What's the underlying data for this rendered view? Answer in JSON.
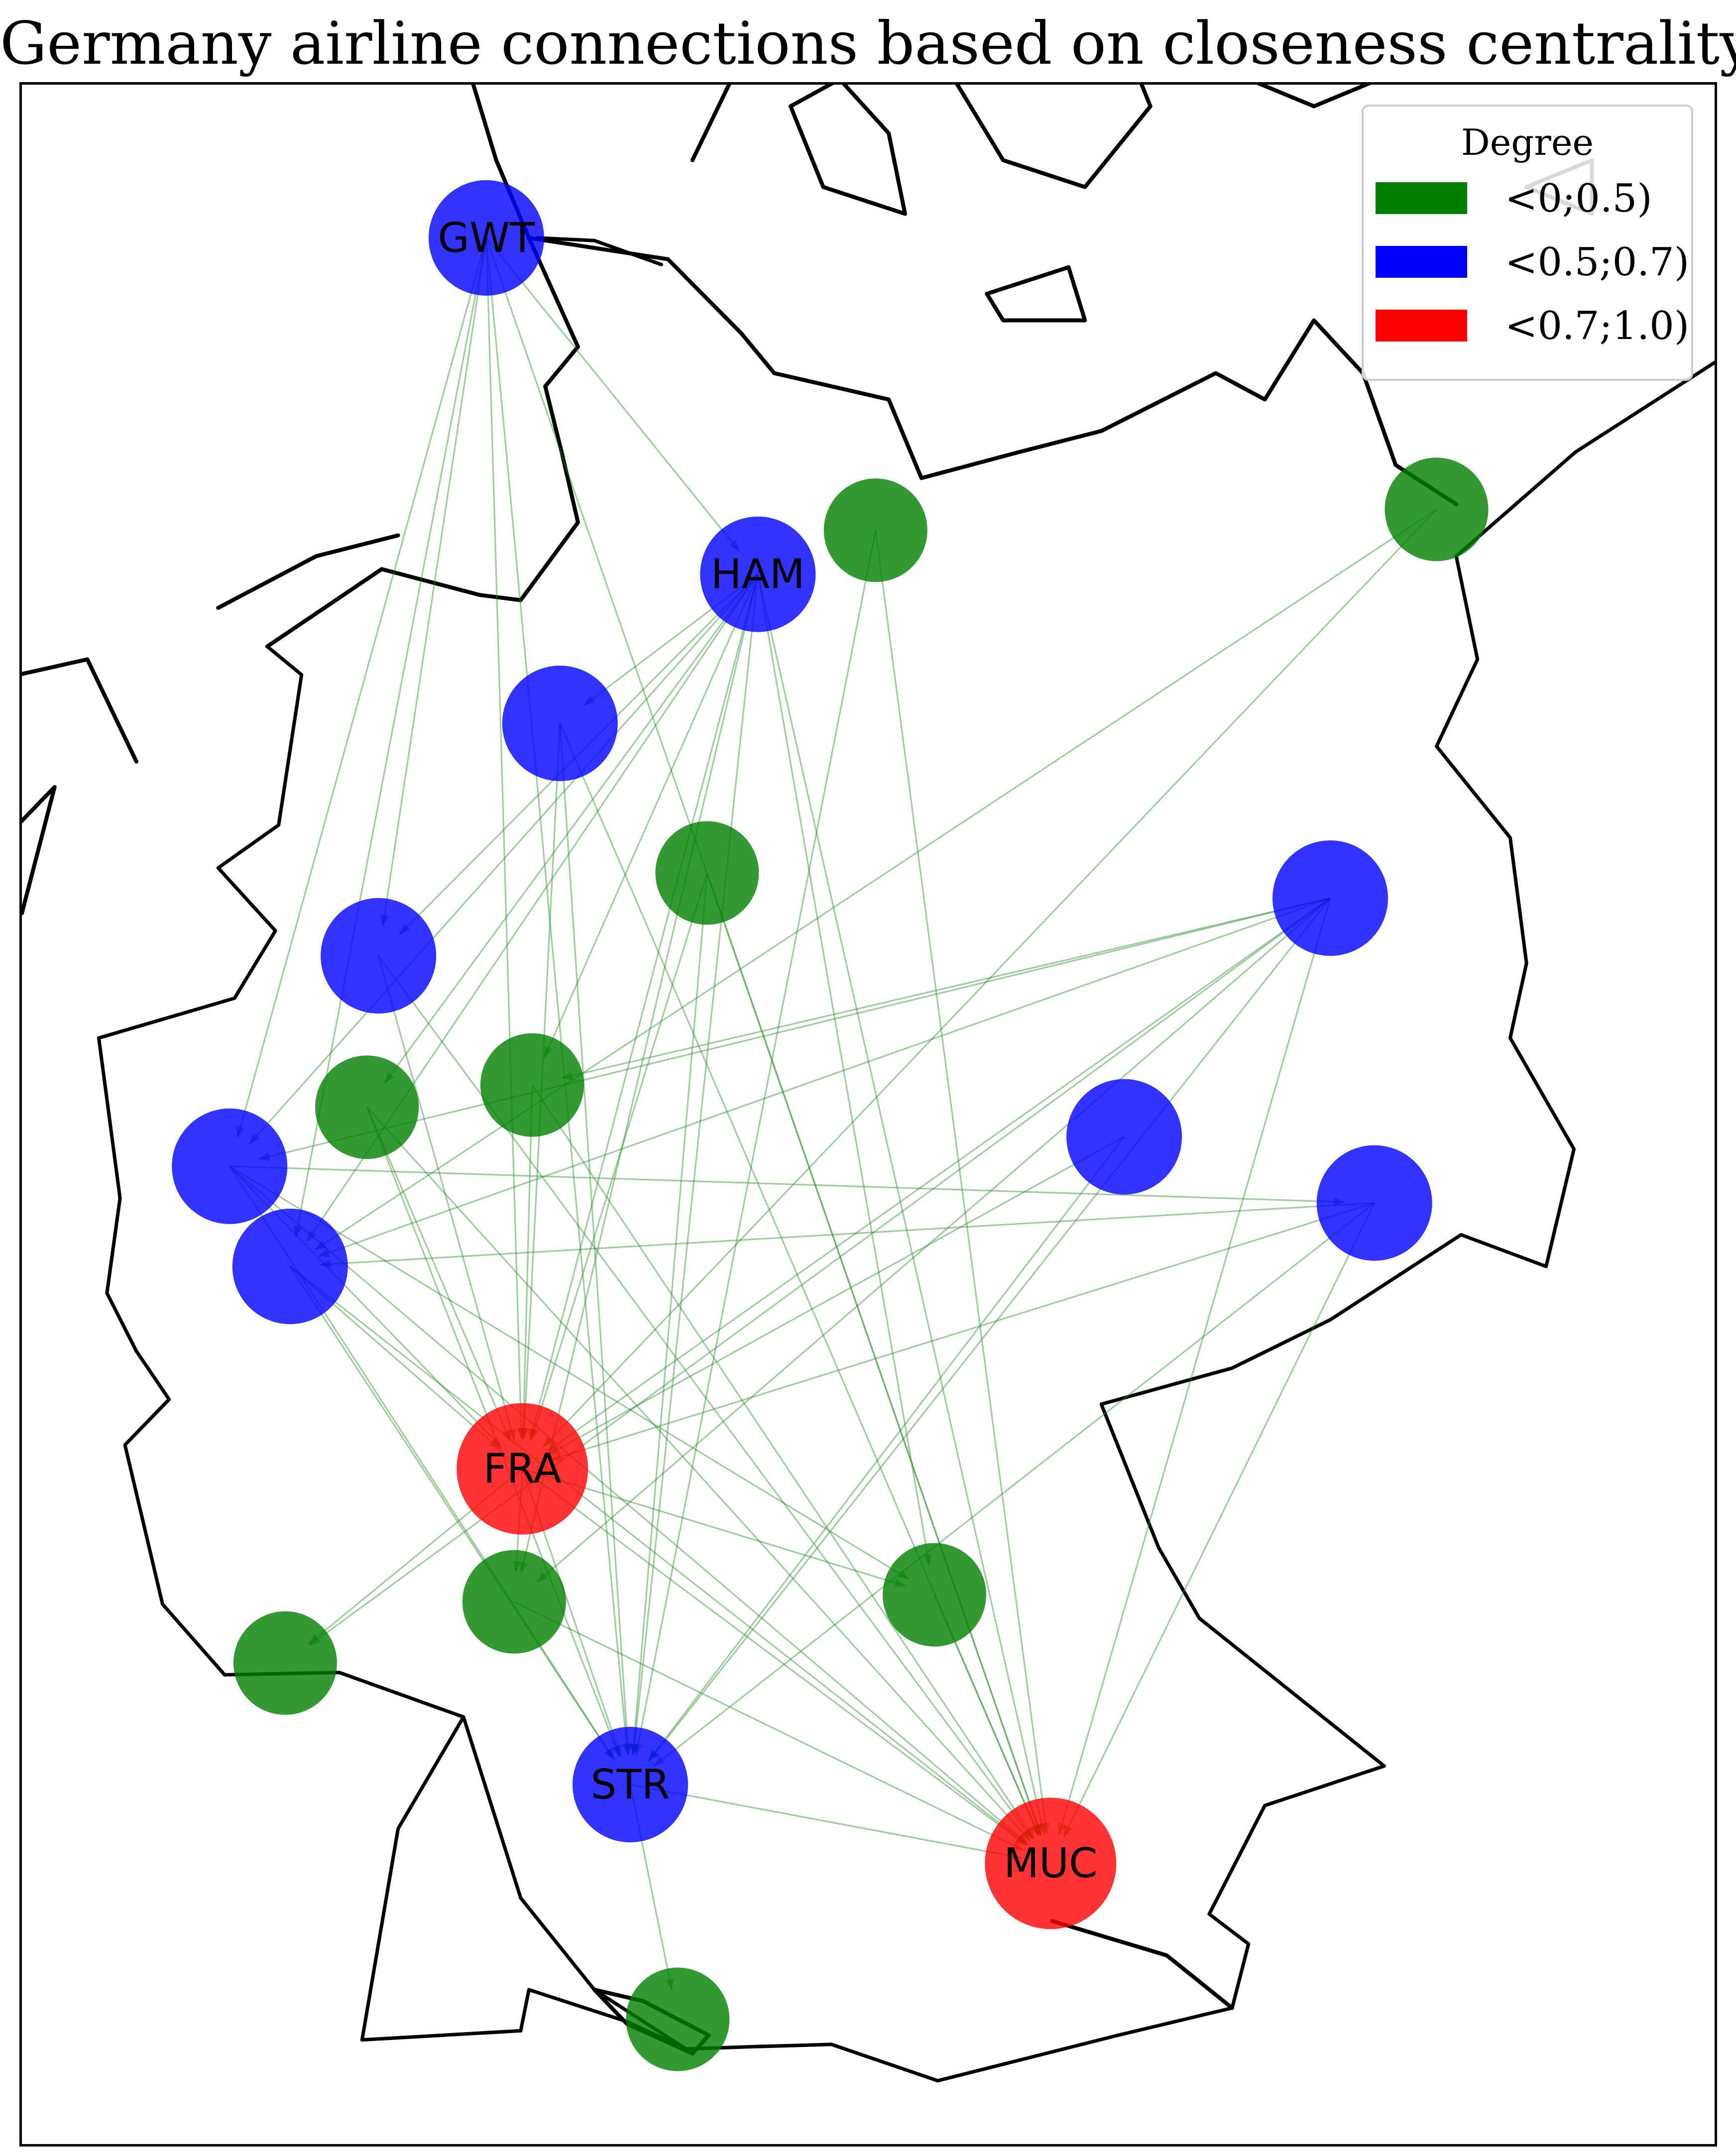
{
  "title": "Germany airline connections based on closeness centrality",
  "legend": {
    "title": "Degree",
    "entries": [
      {
        "label": "<0;0.5)",
        "color": "#008000"
      },
      {
        "label": "<0.5;0.7)",
        "color": "#0000ff"
      },
      {
        "label": "<0.7;1.0)",
        "color": "#ff0000"
      }
    ]
  },
  "colors": {
    "green": "#008000",
    "blue": "#0000ff",
    "red": "#ff0000",
    "edge": "#2e8b2e",
    "coast": "#000000"
  },
  "airports": [
    {
      "id": "GWT",
      "label": "GWT",
      "lat": 54.91,
      "lon": 8.34,
      "class": "blue"
    },
    {
      "id": "HAM",
      "label": "HAM",
      "lat": 53.63,
      "lon": 10.0,
      "class": "blue"
    },
    {
      "id": "LBC",
      "label": "",
      "lat": 53.8,
      "lon": 10.72,
      "class": "green"
    },
    {
      "id": "HDF",
      "label": "",
      "lat": 53.88,
      "lon": 14.15,
      "class": "green"
    },
    {
      "id": "BRE",
      "label": "",
      "lat": 53.05,
      "lon": 8.79,
      "class": "blue"
    },
    {
      "id": "HAJ",
      "label": "",
      "lat": 52.46,
      "lon": 9.69,
      "class": "green"
    },
    {
      "id": "BER",
      "label": "",
      "lat": 52.36,
      "lon": 13.5,
      "class": "blue"
    },
    {
      "id": "FMO",
      "label": "",
      "lat": 52.13,
      "lon": 7.68,
      "class": "blue"
    },
    {
      "id": "PAD",
      "label": "",
      "lat": 51.61,
      "lon": 8.62,
      "class": "green"
    },
    {
      "id": "DTM",
      "label": "",
      "lat": 51.52,
      "lon": 7.61,
      "class": "green"
    },
    {
      "id": "ERF",
      "label": "",
      "lat": 51.4,
      "lon": 12.24,
      "class": "blue"
    },
    {
      "id": "DUS",
      "label": "",
      "lat": 51.28,
      "lon": 6.77,
      "class": "blue"
    },
    {
      "id": "DRS",
      "label": "",
      "lat": 51.13,
      "lon": 13.77,
      "class": "blue"
    },
    {
      "id": "CGN",
      "label": "",
      "lat": 50.87,
      "lon": 7.14,
      "class": "blue"
    },
    {
      "id": "FRA",
      "label": "FRA",
      "lat": 50.03,
      "lon": 8.56,
      "class": "red"
    },
    {
      "id": "NUE",
      "label": "",
      "lat": 49.5,
      "lon": 11.08,
      "class": "green"
    },
    {
      "id": "HHN",
      "label": "",
      "lat": 49.47,
      "lon": 8.51,
      "class": "green"
    },
    {
      "id": "SCN",
      "label": "",
      "lat": 49.21,
      "lon": 7.11,
      "class": "green"
    },
    {
      "id": "STR",
      "label": "STR",
      "lat": 48.69,
      "lon": 9.22,
      "class": "blue"
    },
    {
      "id": "MUC",
      "label": "MUC",
      "lat": 48.35,
      "lon": 11.79,
      "class": "red"
    },
    {
      "id": "FDH",
      "label": "",
      "lat": 47.67,
      "lon": 9.51,
      "class": "green"
    }
  ],
  "routes": [
    [
      "GWT",
      "DUS"
    ],
    [
      "GWT",
      "FMO"
    ],
    [
      "GWT",
      "HAM"
    ],
    [
      "GWT",
      "FRA"
    ],
    [
      "GWT",
      "CGN"
    ],
    [
      "GWT",
      "STR"
    ],
    [
      "GWT",
      "MUC"
    ],
    [
      "HAM",
      "BRE"
    ],
    [
      "HAM",
      "FMO"
    ],
    [
      "HAM",
      "DUS"
    ],
    [
      "HAM",
      "CGN"
    ],
    [
      "HAM",
      "FRA"
    ],
    [
      "HAM",
      "STR"
    ],
    [
      "HAM",
      "MUC"
    ],
    [
      "HAM",
      "HHN"
    ],
    [
      "HAM",
      "NUE"
    ],
    [
      "HAM",
      "DTM"
    ],
    [
      "HAM",
      "PAD"
    ],
    [
      "LBC",
      "MUC"
    ],
    [
      "LBC",
      "STR"
    ],
    [
      "HDF",
      "FRA"
    ],
    [
      "HDF",
      "CGN"
    ],
    [
      "BRE",
      "FRA"
    ],
    [
      "BRE",
      "MUC"
    ],
    [
      "BRE",
      "STR"
    ],
    [
      "HAJ",
      "FRA"
    ],
    [
      "HAJ",
      "MUC"
    ],
    [
      "HAJ",
      "STR"
    ],
    [
      "BER",
      "FRA"
    ],
    [
      "BER",
      "DUS"
    ],
    [
      "BER",
      "CGN"
    ],
    [
      "BER",
      "STR"
    ],
    [
      "BER",
      "HHN"
    ],
    [
      "BER",
      "MUC"
    ],
    [
      "BER",
      "PAD"
    ],
    [
      "BER",
      "SCN"
    ],
    [
      "FMO",
      "FRA"
    ],
    [
      "FMO",
      "MUC"
    ],
    [
      "PAD",
      "MUC"
    ],
    [
      "PAD",
      "FRA"
    ],
    [
      "DTM",
      "FRA"
    ],
    [
      "DTM",
      "MUC"
    ],
    [
      "DTM",
      "STR"
    ],
    [
      "ERF",
      "FRA"
    ],
    [
      "ERF",
      "STR"
    ],
    [
      "DUS",
      "DRS"
    ],
    [
      "DUS",
      "FRA"
    ],
    [
      "DUS",
      "MUC"
    ],
    [
      "DUS",
      "STR"
    ],
    [
      "DUS",
      "NUE"
    ],
    [
      "DRS",
      "FRA"
    ],
    [
      "DRS",
      "CGN"
    ],
    [
      "DRS",
      "STR"
    ],
    [
      "DRS",
      "MUC"
    ],
    [
      "CGN",
      "FRA"
    ],
    [
      "CGN",
      "MUC"
    ],
    [
      "CGN",
      "STR"
    ],
    [
      "FRA",
      "NUE"
    ],
    [
      "FRA",
      "STR"
    ],
    [
      "FRA",
      "MUC"
    ],
    [
      "FRA",
      "SCN"
    ],
    [
      "FRA",
      "HHN"
    ],
    [
      "STR",
      "MUC"
    ],
    [
      "STR",
      "FDH"
    ],
    [
      "NUE",
      "MUC"
    ],
    [
      "HHN",
      "MUC"
    ]
  ],
  "basemap": {
    "country_borders": [
      [
        [
          6.02,
          50.76
        ],
        [
          6.1,
          51.15
        ],
        [
          5.97,
          51.8
        ],
        [
          6.8,
          51.96
        ],
        [
          7.05,
          52.23
        ],
        [
          6.7,
          52.48
        ],
        [
          7.07,
          52.65
        ],
        [
          7.21,
          53.24
        ],
        [
          7.0,
          53.35
        ]
      ],
      [
        [
          6.02,
          50.76
        ],
        [
          6.2,
          50.52
        ],
        [
          6.4,
          50.32
        ],
        [
          6.13,
          50.13
        ],
        [
          6.36,
          49.46
        ],
        [
          6.74,
          49.16
        ],
        [
          7.44,
          49.17
        ],
        [
          8.2,
          48.98
        ],
        [
          7.8,
          48.5
        ],
        [
          7.58,
          47.58
        ]
      ],
      [
        [
          7.58,
          47.58
        ],
        [
          8.55,
          47.62
        ],
        [
          8.6,
          47.8
        ],
        [
          9.2,
          47.66
        ],
        [
          9.56,
          47.54
        ]
      ],
      [
        [
          9.56,
          47.54
        ],
        [
          9.97,
          47.55
        ],
        [
          10.45,
          47.56
        ],
        [
          11.1,
          47.4
        ],
        [
          12.2,
          47.6
        ],
        [
          12.9,
          47.72
        ],
        [
          13.0,
          48.0
        ],
        [
          12.76,
          48.13
        ],
        [
          13.1,
          48.6
        ],
        [
          13.83,
          48.77
        ]
      ],
      [
        [
          13.83,
          48.77
        ],
        [
          12.7,
          49.4
        ],
        [
          12.45,
          49.7
        ],
        [
          12.1,
          50.3
        ],
        [
          12.9,
          50.45
        ],
        [
          13.5,
          50.65
        ],
        [
          14.3,
          51.0
        ],
        [
          14.82,
          50.87
        ]
      ],
      [
        [
          14.82,
          50.87
        ],
        [
          14.99,
          51.35
        ],
        [
          14.6,
          51.8
        ],
        [
          14.7,
          52.1
        ],
        [
          14.6,
          52.6
        ],
        [
          14.15,
          52.96
        ],
        [
          14.4,
          53.3
        ],
        [
          14.27,
          53.7
        ]
      ],
      [
        [
          14.27,
          53.7
        ],
        [
          15.0,
          54.1
        ],
        [
          16.0,
          54.5
        ]
      ],
      [
        [
          9.41,
          54.81
        ],
        [
          9.0,
          54.9
        ],
        [
          8.65,
          54.91
        ]
      ],
      [
        [
          8.2,
          48.98
        ],
        [
          8.55,
          48.2
        ],
        [
          9.0,
          47.8
        ],
        [
          9.56,
          47.54
        ]
      ]
    ],
    "coastlines": [
      [
        [
          7.0,
          53.35
        ],
        [
          7.7,
          53.65
        ],
        [
          8.3,
          53.55
        ],
        [
          8.55,
          53.53
        ],
        [
          8.9,
          53.83
        ],
        [
          8.8,
          54.1
        ],
        [
          8.7,
          54.35
        ],
        [
          8.9,
          54.5
        ],
        [
          8.6,
          54.91
        ],
        [
          8.4,
          55.2
        ],
        [
          8.2,
          55.6
        ]
      ],
      [
        [
          8.6,
          54.91
        ],
        [
          9.45,
          54.83
        ],
        [
          9.9,
          54.55
        ],
        [
          10.1,
          54.4
        ],
        [
          10.8,
          54.3
        ],
        [
          11.0,
          54.0
        ],
        [
          11.6,
          54.1
        ],
        [
          12.1,
          54.18
        ],
        [
          12.8,
          54.4
        ],
        [
          13.1,
          54.3
        ],
        [
          13.4,
          54.6
        ],
        [
          13.7,
          54.4
        ],
        [
          13.9,
          54.05
        ],
        [
          14.27,
          53.9
        ]
      ],
      [
        [
          8.2,
          55.6
        ],
        [
          8.1,
          56.1
        ],
        [
          8.3,
          56.6
        ],
        [
          8.6,
          57.1
        ]
      ],
      [
        [
          9.6,
          55.2
        ],
        [
          10.0,
          55.7
        ],
        [
          10.2,
          56.1
        ],
        [
          10.6,
          56.4
        ],
        [
          10.3,
          56.9
        ],
        [
          10.6,
          57.2
        ]
      ],
      [
        [
          10.5,
          55.5
        ],
        [
          10.8,
          55.3
        ],
        [
          10.9,
          55.0
        ],
        [
          10.4,
          55.1
        ],
        [
          10.2,
          55.4
        ],
        [
          10.5,
          55.5
        ]
      ],
      [
        [
          11.2,
          55.8
        ],
        [
          11.7,
          55.9
        ],
        [
          12.2,
          55.7
        ],
        [
          12.4,
          55.4
        ],
        [
          12.0,
          55.1
        ],
        [
          11.5,
          55.2
        ],
        [
          11.2,
          55.5
        ],
        [
          11.2,
          55.8
        ]
      ],
      [
        [
          11.4,
          54.7
        ],
        [
          11.9,
          54.8
        ],
        [
          12.0,
          54.6
        ],
        [
          11.5,
          54.6
        ],
        [
          11.4,
          54.7
        ]
      ],
      [
        [
          14.7,
          55.1
        ],
        [
          15.1,
          55.2
        ],
        [
          15.1,
          55.0
        ],
        [
          14.7,
          55.1
        ]
      ],
      [
        [
          13.0,
          55.5
        ],
        [
          13.4,
          55.4
        ],
        [
          14.2,
          55.6
        ],
        [
          14.4,
          55.8
        ],
        [
          14.0,
          56.1
        ]
      ],
      [
        [
          9.0,
          47.8
        ],
        [
          9.2,
          47.65
        ],
        [
          9.6,
          47.52
        ],
        [
          9.7,
          47.6
        ],
        [
          9.3,
          47.75
        ],
        [
          9.0,
          47.8
        ]
      ],
      [
        [
          6.2,
          52.9
        ],
        [
          5.9,
          53.3
        ],
        [
          5.2,
          53.2
        ],
        [
          4.8,
          52.9
        ],
        [
          4.6,
          52.4
        ],
        [
          4.1,
          51.9
        ],
        [
          3.6,
          51.4
        ]
      ],
      [
        [
          5.4,
          52.6
        ],
        [
          5.7,
          52.8
        ],
        [
          5.5,
          52.3
        ],
        [
          5.1,
          52.4
        ],
        [
          5.4,
          52.6
        ]
      ],
      [
        [
          6.7,
          53.5
        ],
        [
          7.3,
          53.7
        ],
        [
          7.8,
          53.78
        ]
      ],
      [
        [
          11.8,
          48.1
        ],
        [
          12.5,
          47.95
        ],
        [
          12.9,
          47.72
        ]
      ]
    ]
  }
}
